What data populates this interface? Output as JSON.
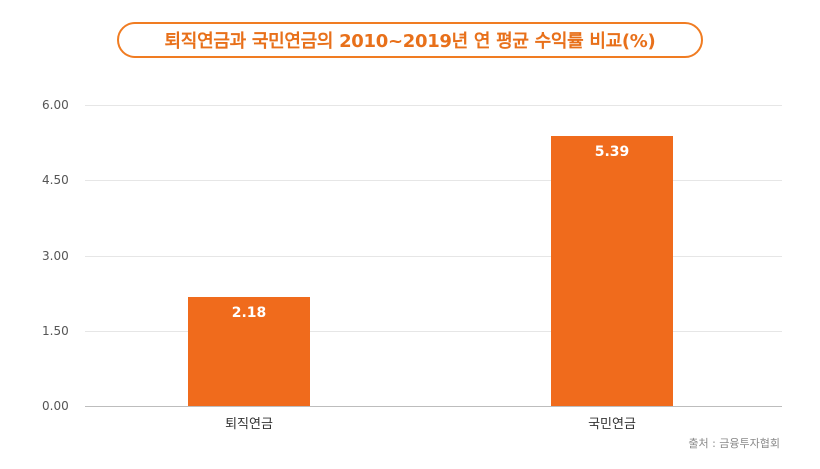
{
  "chart_data": {
    "type": "bar",
    "title": "퇴직연금과 국민연금의 2010~2019년 연 평균 수익률 비교(%)",
    "categories": [
      "퇴직연금",
      "국민연금"
    ],
    "values": [
      2.18,
      5.39
    ],
    "value_labels": [
      "2.18",
      "5.39"
    ],
    "yticks": [
      "0.00",
      "1.50",
      "3.00",
      "4.50",
      "6.00"
    ],
    "ytick_values": [
      0,
      1.5,
      3,
      4.5,
      6
    ],
    "ylim": [
      0,
      6
    ],
    "xlabel": "",
    "ylabel": "",
    "grid": true,
    "legend": "none",
    "source": "출처 : 금융투자협회",
    "colors": {
      "bar": "#f06b1c",
      "accent": "#f07c22"
    }
  }
}
